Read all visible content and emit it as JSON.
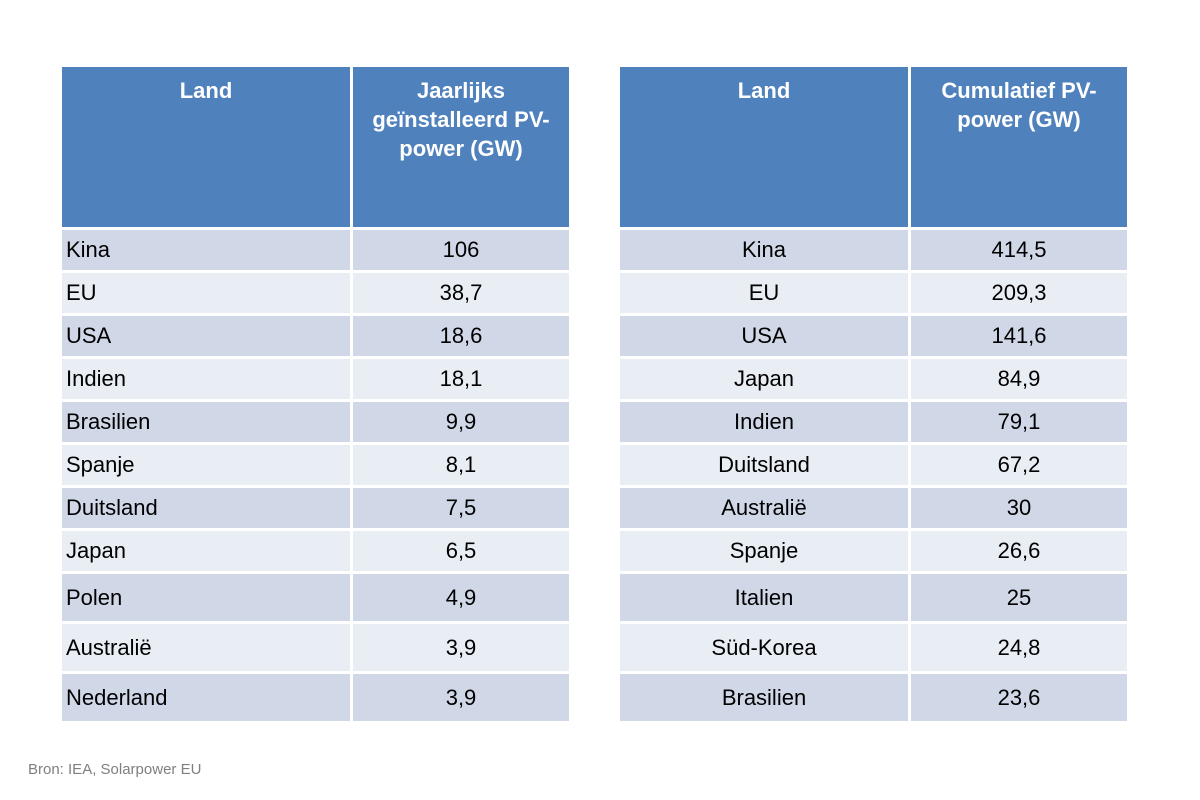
{
  "annual": {
    "headers": [
      "Land",
      "Jaarlijks geïnstalleerd PV-power (GW)"
    ],
    "rows": [
      {
        "land": "Kina",
        "value": "106"
      },
      {
        "land": "EU",
        "value": "38,7"
      },
      {
        "land": "USA",
        "value": "18,6"
      },
      {
        "land": "Indien",
        "value": "18,1"
      },
      {
        "land": "Brasilien",
        "value": "9,9"
      },
      {
        "land": "Spanje",
        "value": "8,1"
      },
      {
        "land": "Duitsland",
        "value": "7,5"
      },
      {
        "land": "Japan",
        "value": "6,5"
      },
      {
        "land": "Polen",
        "value": "4,9"
      },
      {
        "land": "Australië",
        "value": "3,9"
      },
      {
        "land": "Nederland",
        "value": "3,9"
      }
    ]
  },
  "cumulative": {
    "headers": [
      "Land",
      "Cumulatief PV-power (GW)"
    ],
    "rows": [
      {
        "land": "Kina",
        "value": "414,5"
      },
      {
        "land": "EU",
        "value": "209,3"
      },
      {
        "land": "USA",
        "value": "141,6"
      },
      {
        "land": "Japan",
        "value": "84,9"
      },
      {
        "land": "Indien",
        "value": "79,1"
      },
      {
        "land": "Duitsland",
        "value": "67,2"
      },
      {
        "land": "Australië",
        "value": "30"
      },
      {
        "land": "Spanje",
        "value": "26,6"
      },
      {
        "land": "Italien",
        "value": "25"
      },
      {
        "land": "Süd-Korea",
        "value": "24,8"
      },
      {
        "land": "Brasilien",
        "value": "23,6"
      }
    ]
  },
  "source": "Bron: IEA, Solarpower EU",
  "colors": {
    "header_bg": "#4f81bd",
    "row_odd": "#d0d8e8",
    "row_even": "#e9edf4",
    "source_text": "#7f7f7f"
  }
}
